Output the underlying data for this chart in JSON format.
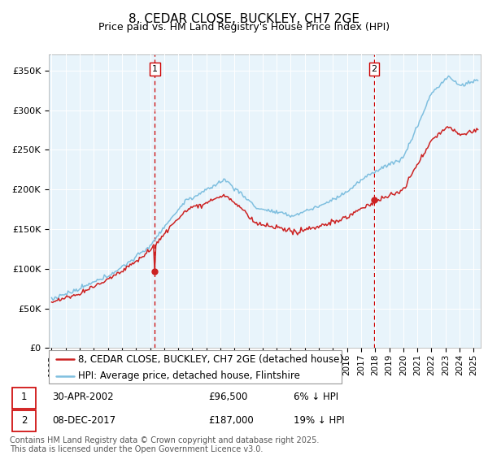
{
  "title": "8, CEDAR CLOSE, BUCKLEY, CH7 2GE",
  "subtitle": "Price paid vs. HM Land Registry's House Price Index (HPI)",
  "ylim": [
    0,
    370000
  ],
  "xlim_start": 1994.8,
  "xlim_end": 2025.5,
  "sale1_date": 2002.33,
  "sale1_price": 96500,
  "sale1_label": "1",
  "sale2_date": 2017.92,
  "sale2_price": 187000,
  "sale2_label": "2",
  "legend_entry1": "8, CEDAR CLOSE, BUCKLEY, CH7 2GE (detached house)",
  "legend_entry2": "HPI: Average price, detached house, Flintshire",
  "table_row1": [
    "1",
    "30-APR-2002",
    "£96,500",
    "6% ↓ HPI"
  ],
  "table_row2": [
    "2",
    "08-DEC-2017",
    "£187,000",
    "19% ↓ HPI"
  ],
  "footnote": "Contains HM Land Registry data © Crown copyright and database right 2025.\nThis data is licensed under the Open Government Licence v3.0.",
  "hpi_color": "#7fbfdf",
  "price_color": "#cc2222",
  "vline_color": "#cc0000",
  "bg_color": "#ffffff",
  "chart_bg": "#e8f4fb",
  "grid_color": "#ffffff",
  "title_fontsize": 11,
  "subtitle_fontsize": 9,
  "tick_fontsize": 8,
  "legend_fontsize": 8.5,
  "table_fontsize": 8.5,
  "footnote_fontsize": 7
}
